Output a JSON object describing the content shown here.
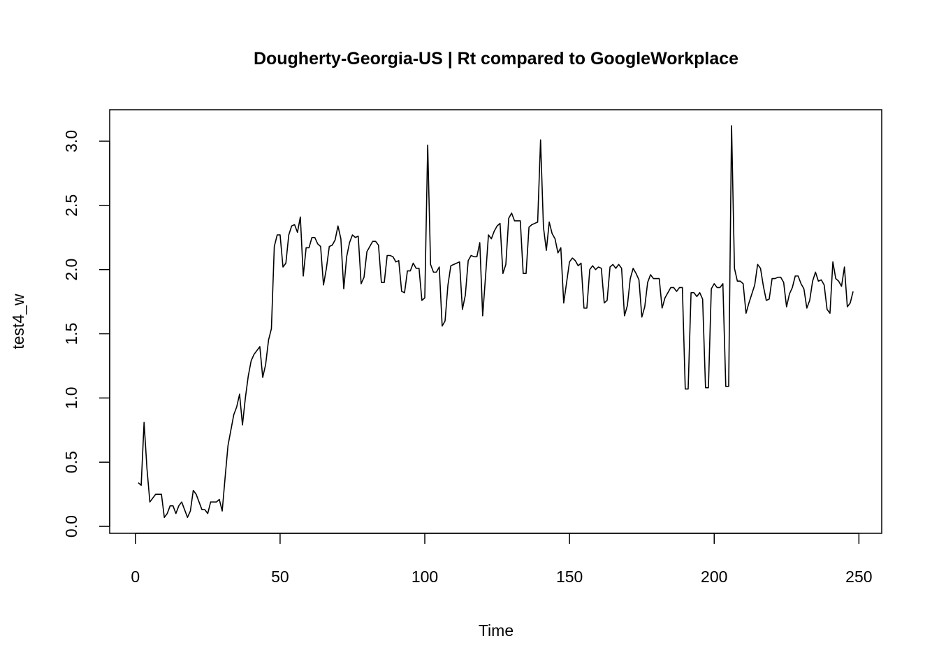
{
  "chart_data": {
    "type": "line",
    "title": "Dougherty-Georgia-US | Rt compared to GoogleWorkplace",
    "x_label": "Time",
    "y_label": "test4_w",
    "x": [
      1,
      2,
      3,
      4,
      5,
      6,
      7,
      8,
      9,
      10,
      11,
      12,
      13,
      14,
      15,
      16,
      17,
      18,
      19,
      20,
      21,
      22,
      23,
      24,
      25,
      26,
      27,
      28,
      29,
      30,
      31,
      32,
      33,
      34,
      35,
      36,
      37,
      38,
      39,
      40,
      41,
      42,
      43,
      44,
      45,
      46,
      47,
      48,
      49,
      50,
      51,
      52,
      53,
      54,
      55,
      56,
      57,
      58,
      59,
      60,
      61,
      62,
      63,
      64,
      65,
      66,
      67,
      68,
      69,
      70,
      71,
      72,
      73,
      74,
      75,
      76,
      77,
      78,
      79,
      80,
      81,
      82,
      83,
      84,
      85,
      86,
      87,
      88,
      89,
      90,
      91,
      92,
      93,
      94,
      95,
      96,
      97,
      98,
      99,
      100,
      101,
      102,
      103,
      104,
      105,
      106,
      107,
      108,
      109,
      110,
      111,
      112,
      113,
      114,
      115,
      116,
      117,
      118,
      119,
      120,
      121,
      122,
      123,
      124,
      125,
      126,
      127,
      128,
      129,
      130,
      131,
      132,
      133,
      134,
      135,
      136,
      137,
      138,
      139,
      140,
      141,
      142,
      143,
      144,
      145,
      146,
      147,
      148,
      149,
      150,
      151,
      152,
      153,
      154,
      155,
      156,
      157,
      158,
      159,
      160,
      161,
      162,
      163,
      164,
      165,
      166,
      167,
      168,
      169,
      170,
      171,
      172,
      173,
      174,
      175,
      176,
      177,
      178,
      179,
      180,
      181,
      182,
      183,
      184,
      185,
      186,
      187,
      188,
      189,
      190,
      191,
      192,
      193,
      194,
      195,
      196,
      197,
      198,
      199,
      200,
      201,
      202,
      203,
      204,
      205,
      206,
      207,
      208,
      209,
      210,
      211,
      212,
      213,
      214,
      215,
      216,
      217,
      218,
      219,
      220,
      221,
      222,
      223,
      224,
      225,
      226,
      227,
      228,
      229,
      230,
      231,
      232,
      233,
      234,
      235,
      236,
      237,
      238,
      239,
      240,
      241,
      242,
      243,
      244,
      245,
      246,
      247,
      248
    ],
    "series": [
      {
        "color": "#000000",
        "values": [
          0.34,
          0.32,
          0.81,
          0.45,
          0.19,
          0.22,
          0.25,
          0.25,
          0.25,
          0.07,
          0.1,
          0.16,
          0.16,
          0.1,
          0.16,
          0.19,
          0.13,
          0.07,
          0.12,
          0.28,
          0.25,
          0.19,
          0.13,
          0.13,
          0.1,
          0.19,
          0.19,
          0.19,
          0.21,
          0.12,
          0.38,
          0.63,
          0.75,
          0.87,
          0.93,
          1.03,
          0.79,
          1.0,
          1.17,
          1.29,
          1.34,
          1.37,
          1.4,
          1.16,
          1.26,
          1.45,
          1.54,
          2.18,
          2.27,
          2.27,
          2.02,
          2.05,
          2.27,
          2.34,
          2.35,
          2.29,
          2.41,
          1.95,
          2.17,
          2.17,
          2.25,
          2.25,
          2.2,
          2.18,
          1.88,
          2.01,
          2.18,
          2.19,
          2.23,
          2.34,
          2.24,
          1.85,
          2.1,
          2.21,
          2.27,
          2.25,
          2.26,
          1.89,
          1.94,
          2.14,
          2.18,
          2.22,
          2.22,
          2.19,
          1.9,
          1.9,
          2.11,
          2.11,
          2.1,
          2.06,
          2.07,
          1.83,
          1.82,
          1.99,
          1.99,
          2.05,
          2.01,
          2.01,
          1.76,
          1.78,
          2.97,
          2.04,
          1.98,
          1.98,
          2.02,
          1.56,
          1.6,
          1.88,
          2.03,
          2.04,
          2.05,
          2.06,
          1.69,
          1.8,
          2.07,
          2.11,
          2.1,
          2.1,
          2.21,
          1.64,
          1.95,
          2.27,
          2.24,
          2.3,
          2.34,
          2.36,
          1.97,
          2.04,
          2.4,
          2.44,
          2.38,
          2.38,
          2.38,
          1.97,
          1.97,
          2.33,
          2.35,
          2.36,
          2.37,
          3.01,
          2.33,
          2.15,
          2.37,
          2.28,
          2.24,
          2.13,
          2.17,
          1.74,
          1.9,
          2.06,
          2.09,
          2.07,
          2.03,
          2.05,
          1.7,
          1.7,
          2.0,
          2.03,
          2.0,
          2.02,
          2.01,
          1.74,
          1.76,
          2.02,
          2.04,
          2.01,
          2.04,
          2.01,
          1.64,
          1.72,
          1.93,
          2.01,
          1.97,
          1.92,
          1.63,
          1.71,
          1.9,
          1.96,
          1.93,
          1.93,
          1.93,
          1.7,
          1.78,
          1.82,
          1.86,
          1.86,
          1.83,
          1.86,
          1.86,
          1.07,
          1.07,
          1.82,
          1.82,
          1.79,
          1.82,
          1.77,
          1.08,
          1.08,
          1.85,
          1.89,
          1.86,
          1.86,
          1.89,
          1.09,
          1.09,
          3.12,
          2.01,
          1.91,
          1.91,
          1.89,
          1.66,
          1.74,
          1.81,
          1.88,
          2.04,
          2.01,
          1.87,
          1.76,
          1.77,
          1.93,
          1.93,
          1.94,
          1.94,
          1.9,
          1.71,
          1.81,
          1.86,
          1.95,
          1.95,
          1.89,
          1.85,
          1.7,
          1.76,
          1.91,
          1.98,
          1.91,
          1.92,
          1.88,
          1.69,
          1.66,
          2.06,
          1.93,
          1.91,
          1.87,
          2.02,
          1.71,
          1.74,
          1.83
        ]
      }
    ],
    "xlim": [
      -8.88,
      257.88
    ],
    "ylim": [
      -0.054,
      3.245
    ],
    "xticks": [
      0,
      50,
      100,
      150,
      200,
      250
    ],
    "yticks": [
      {
        "value": 0,
        "label": "0.0"
      },
      {
        "value": 0.5,
        "label": "0.5"
      },
      {
        "value": 1,
        "label": "1.0"
      },
      {
        "value": 1.5,
        "label": "1.5"
      },
      {
        "value": 2,
        "label": "2.0"
      },
      {
        "value": 2.5,
        "label": "2.5"
      },
      {
        "value": 3,
        "label": "3.0"
      }
    ]
  }
}
